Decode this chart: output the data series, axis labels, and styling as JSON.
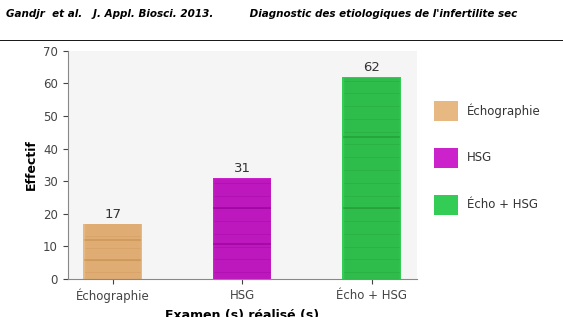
{
  "categories": [
    "Échographie",
    "HSG",
    "Écho + HSG"
  ],
  "values": [
    17,
    31,
    62
  ],
  "bar_colors": [
    "#E8B882",
    "#CC22CC",
    "#33CC55"
  ],
  "bar_dark_colors": [
    "#C89050",
    "#990099",
    "#229933"
  ],
  "bar_light_colors": [
    "#F8D8A8",
    "#EE55EE",
    "#66EE88"
  ],
  "legend_labels": [
    "Échographie",
    "HSG",
    "Écho + HSG"
  ],
  "legend_colors": [
    "#E8B882",
    "#CC22CC",
    "#33CC55"
  ],
  "xlabel": "Examen (s) réalisé (s)",
  "ylabel": "Effectif",
  "ylim": [
    0,
    70
  ],
  "yticks": [
    0,
    10,
    20,
    30,
    40,
    50,
    60,
    70
  ],
  "background_color": "#ffffff",
  "plot_bg_color": "#f5f5f5",
  "bar_width": 0.45
}
